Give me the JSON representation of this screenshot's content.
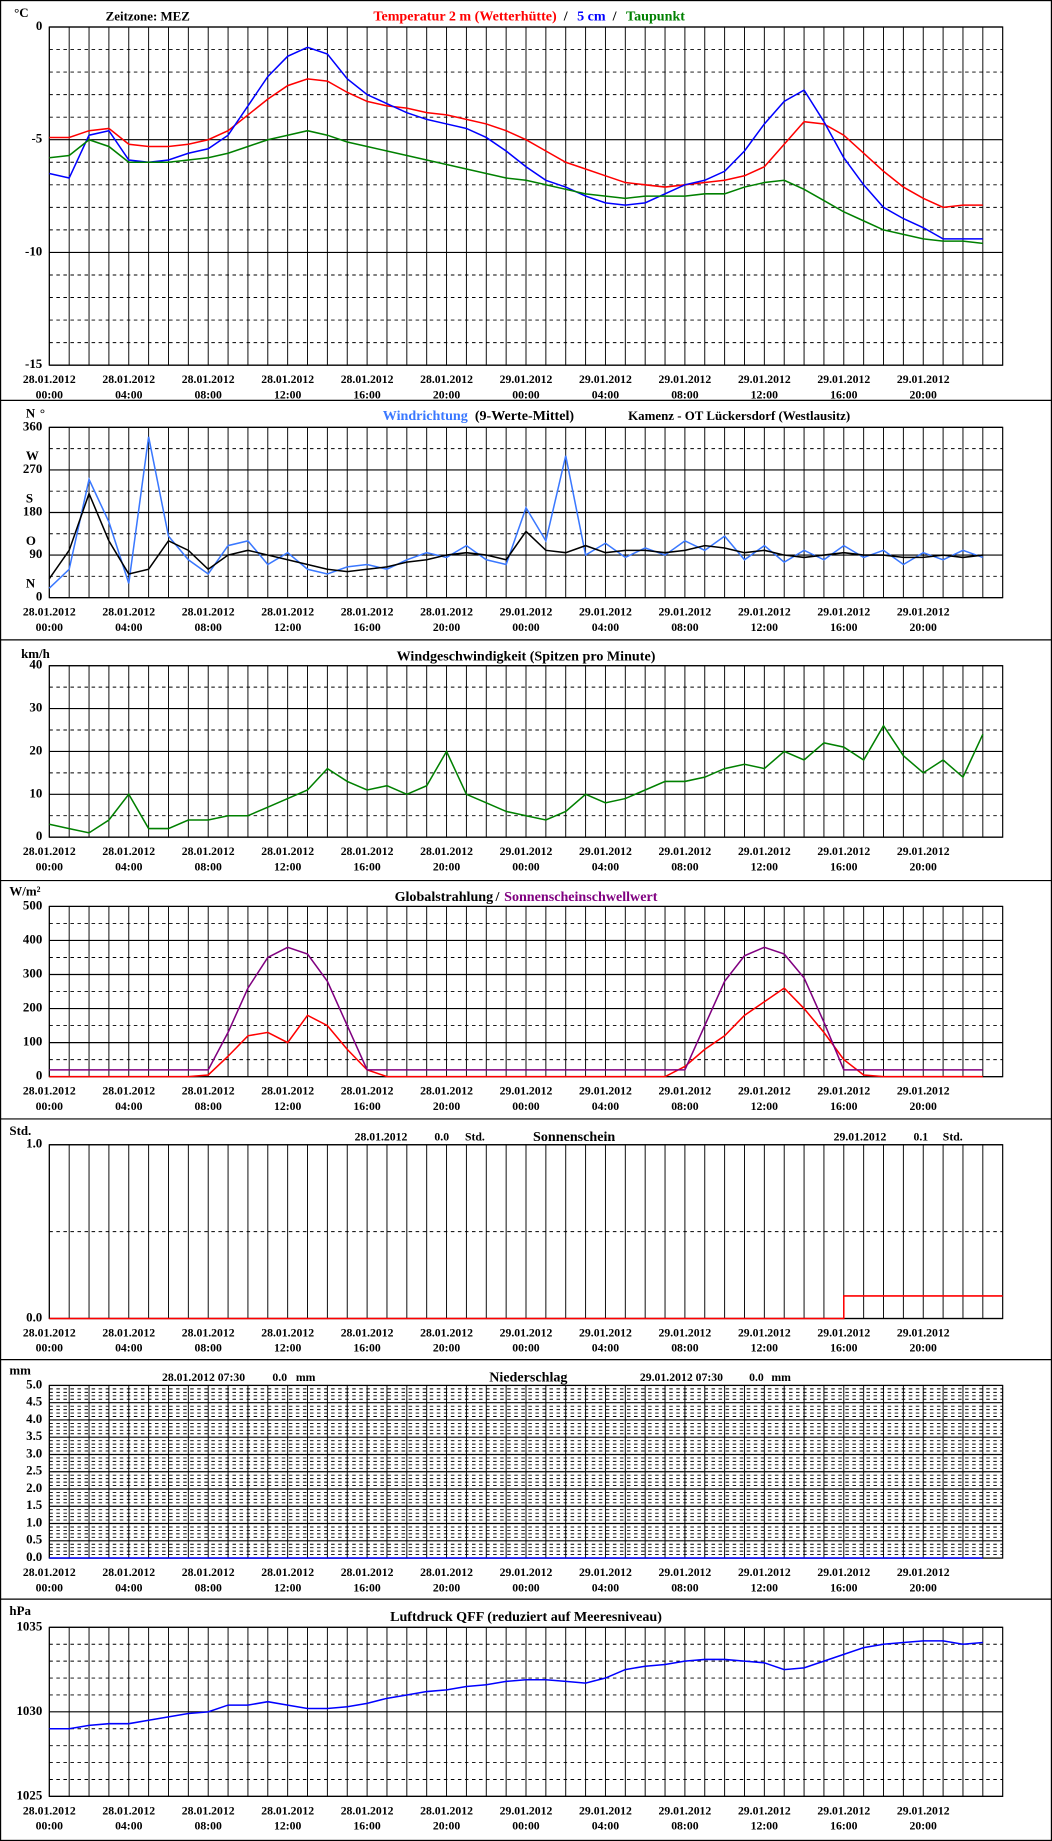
{
  "time_axis": {
    "x": [
      "28.01.2012 00:00",
      "28.01.2012 01:00",
      "28.01.2012 02:00",
      "28.01.2012 03:00",
      "28.01.2012 04:00",
      "28.01.2012 05:00",
      "28.01.2012 06:00",
      "28.01.2012 07:00",
      "28.01.2012 08:00",
      "28.01.2012 09:00",
      "28.01.2012 10:00",
      "28.01.2012 11:00",
      "28.01.2012 12:00",
      "28.01.2012 13:00",
      "28.01.2012 14:00",
      "28.01.2012 15:00",
      "28.01.2012 16:00",
      "28.01.2012 17:00",
      "28.01.2012 18:00",
      "28.01.2012 19:00",
      "28.01.2012 20:00",
      "28.01.2012 21:00",
      "28.01.2012 22:00",
      "28.01.2012 23:00",
      "29.01.2012 00:00",
      "29.01.2012 01:00",
      "29.01.2012 02:00",
      "29.01.2012 03:00",
      "29.01.2012 04:00",
      "29.01.2012 05:00",
      "29.01.2012 06:00",
      "29.01.2012 07:00",
      "29.01.2012 08:00",
      "29.01.2012 09:00",
      "29.01.2012 10:00",
      "29.01.2012 11:00",
      "29.01.2012 12:00",
      "29.01.2012 13:00",
      "29.01.2012 14:00",
      "29.01.2012 15:00",
      "29.01.2012 16:00",
      "29.01.2012 17:00",
      "29.01.2012 18:00",
      "29.01.2012 19:00",
      "29.01.2012 20:00",
      "29.01.2012 21:00",
      "29.01.2012 22:00",
      "29.01.2012 23:00"
    ],
    "xticks": [
      {
        "date": "28.01.2012",
        "time": "00:00"
      },
      {
        "date": "28.01.2012",
        "time": "04:00"
      },
      {
        "date": "28.01.2012",
        "time": "08:00"
      },
      {
        "date": "28.01.2012",
        "time": "12:00"
      },
      {
        "date": "28.01.2012",
        "time": "16:00"
      },
      {
        "date": "28.01.2012",
        "time": "20:00"
      },
      {
        "date": "29.01.2012",
        "time": "00:00"
      },
      {
        "date": "29.01.2012",
        "time": "04:00"
      },
      {
        "date": "29.01.2012",
        "time": "08:00"
      },
      {
        "date": "29.01.2012",
        "time": "12:00"
      },
      {
        "date": "29.01.2012",
        "time": "16:00"
      },
      {
        "date": "29.01.2012",
        "time": "20:00"
      }
    ]
  },
  "chart_data": [
    {
      "type": "line",
      "unit": "°C",
      "zone": "Zeitzone: MEZ",
      "legend_separator": "/",
      "ylim": [
        -15,
        0
      ],
      "yticks": [
        0,
        -5,
        -10,
        -15
      ],
      "minor_grid_step": 1,
      "grid": true,
      "series": [
        {
          "name": "Temperatur 2 m (Wetterhütte)",
          "color": "#ff0000",
          "values": [
            -4.9,
            -4.9,
            -4.6,
            -4.5,
            -5.2,
            -5.3,
            -5.3,
            -5.2,
            -5.0,
            -4.6,
            -3.9,
            -3.2,
            -2.6,
            -2.3,
            -2.4,
            -2.9,
            -3.3,
            -3.5,
            -3.6,
            -3.8,
            -3.9,
            -4.1,
            -4.3,
            -4.6,
            -5.0,
            -5.5,
            -6.0,
            -6.3,
            -6.6,
            -6.9,
            -7.0,
            -7.1,
            -7.0,
            -6.9,
            -6.8,
            -6.6,
            -6.2,
            -5.2,
            -4.2,
            -4.3,
            -4.8,
            -5.6,
            -6.4,
            -7.1,
            -7.6,
            -8.0,
            -7.9,
            -7.9
          ]
        },
        {
          "name": "5 cm",
          "color": "#0000ff",
          "values": [
            -6.5,
            -6.7,
            -4.8,
            -4.6,
            -5.9,
            -6.0,
            -5.9,
            -5.6,
            -5.4,
            -4.8,
            -3.5,
            -2.2,
            -1.3,
            -0.9,
            -1.2,
            -2.3,
            -3.0,
            -3.4,
            -3.8,
            -4.1,
            -4.3,
            -4.5,
            -4.9,
            -5.5,
            -6.2,
            -6.8,
            -7.1,
            -7.5,
            -7.8,
            -7.9,
            -7.8,
            -7.4,
            -7.0,
            -6.8,
            -6.4,
            -5.5,
            -4.3,
            -3.3,
            -2.8,
            -4.2,
            -5.8,
            -7.0,
            -8.0,
            -8.5,
            -8.9,
            -9.4,
            -9.4,
            -9.4
          ]
        },
        {
          "name": "Taupunkt",
          "color": "#008000",
          "values": [
            -5.8,
            -5.7,
            -5.0,
            -5.3,
            -6.0,
            -6.0,
            -6.0,
            -5.9,
            -5.8,
            -5.6,
            -5.3,
            -5.0,
            -4.8,
            -4.6,
            -4.8,
            -5.1,
            -5.3,
            -5.5,
            -5.7,
            -5.9,
            -6.1,
            -6.3,
            -6.5,
            -6.7,
            -6.8,
            -7.0,
            -7.2,
            -7.4,
            -7.5,
            -7.6,
            -7.5,
            -7.5,
            -7.5,
            -7.4,
            -7.4,
            -7.1,
            -6.9,
            -6.8,
            -7.2,
            -7.7,
            -8.2,
            -8.6,
            -9.0,
            -9.2,
            -9.4,
            -9.5,
            -9.5,
            -9.6
          ]
        }
      ]
    },
    {
      "type": "line",
      "unit": "°",
      "station": "Kamenz - OT Lückersdorf (Westlausitz)",
      "ylim": [
        0,
        360
      ],
      "yticks": [
        0,
        90,
        180,
        270,
        360
      ],
      "compass": [
        "N",
        "O",
        "S",
        "W",
        "N"
      ],
      "minor_grid_step": 45,
      "grid": true,
      "series": [
        {
          "name": "Windrichtung",
          "color": "#3a78ff",
          "values": [
            20,
            60,
            250,
            160,
            30,
            340,
            130,
            80,
            50,
            110,
            120,
            70,
            95,
            60,
            50,
            65,
            70,
            60,
            80,
            95,
            85,
            110,
            80,
            70,
            190,
            120,
            300,
            90,
            115,
            85,
            105,
            90,
            120,
            100,
            130,
            80,
            110,
            75,
            100,
            80,
            110,
            85,
            100,
            70,
            95,
            80,
            100,
            85
          ]
        },
        {
          "name": "(9-Werte-Mittel)",
          "color": "#000000",
          "values": [
            40,
            100,
            220,
            120,
            50,
            60,
            120,
            100,
            60,
            90,
            100,
            90,
            80,
            70,
            60,
            55,
            60,
            65,
            75,
            80,
            90,
            95,
            90,
            80,
            140,
            100,
            95,
            110,
            95,
            100,
            100,
            95,
            100,
            110,
            105,
            95,
            100,
            90,
            85,
            90,
            95,
            90,
            90,
            85,
            85,
            90,
            85,
            90
          ]
        }
      ]
    },
    {
      "type": "line",
      "unit": "km/h",
      "title": "Windgeschwindigkeit (Spitzen pro Minute)",
      "ylim": [
        0,
        40
      ],
      "yticks": [
        0,
        10,
        20,
        30,
        40
      ],
      "minor_grid_step": 5,
      "grid": true,
      "series": [
        {
          "name": "Windgeschwindigkeit",
          "color": "#008000",
          "values": [
            3,
            2,
            1,
            4,
            10,
            2,
            2,
            4,
            4,
            5,
            5,
            7,
            9,
            11,
            16,
            13,
            11,
            12,
            10,
            12,
            20,
            10,
            8,
            6,
            5,
            4,
            6,
            10,
            8,
            9,
            11,
            13,
            13,
            14,
            16,
            17,
            16,
            20,
            18,
            22,
            21,
            18,
            26,
            19,
            15,
            18,
            14,
            24
          ]
        }
      ]
    },
    {
      "type": "line",
      "unit": "W/m²",
      "legend_separator": "/",
      "ylim": [
        0,
        500
      ],
      "yticks": [
        0,
        100,
        200,
        300,
        400,
        500
      ],
      "minor_grid_step": 50,
      "grid": true,
      "series": [
        {
          "name": "Globalstrahlung",
          "color": "#ff0000",
          "legend_color": "#000000",
          "values": [
            0,
            0,
            0,
            0,
            0,
            0,
            0,
            0,
            5,
            60,
            120,
            130,
            100,
            180,
            150,
            80,
            20,
            0,
            0,
            0,
            0,
            0,
            0,
            0,
            0,
            0,
            0,
            0,
            0,
            0,
            0,
            0,
            30,
            80,
            120,
            180,
            220,
            260,
            200,
            130,
            50,
            5,
            0,
            0,
            0,
            0,
            0,
            0
          ]
        },
        {
          "name": "Sonnenscheinschwellwert",
          "color": "#800080",
          "values": [
            20,
            20,
            20,
            20,
            20,
            20,
            20,
            20,
            20,
            130,
            260,
            350,
            380,
            360,
            280,
            150,
            20,
            20,
            20,
            20,
            20,
            20,
            20,
            20,
            20,
            20,
            20,
            20,
            20,
            20,
            20,
            20,
            20,
            150,
            280,
            355,
            380,
            360,
            290,
            160,
            20,
            20,
            20,
            20,
            20,
            20,
            20,
            20
          ]
        }
      ]
    },
    {
      "type": "line",
      "unit": "Std.",
      "title": "Sonnenschein",
      "drawstyle": "steps-post",
      "ylim": [
        0,
        1
      ],
      "yticks": [
        {
          "value": 0,
          "label": "0.0"
        },
        {
          "value": 1,
          "label": "1.0"
        }
      ],
      "minor_grid_step": 0.5,
      "grid": true,
      "annotations": [
        {
          "date": "28.01.2012",
          "total": {
            "value": 0,
            "label": "0.0"
          },
          "unit": "Std."
        },
        {
          "date": "29.01.2012",
          "total": {
            "value": 0.1,
            "label": "0.1"
          },
          "unit": "Std."
        }
      ],
      "series": [
        {
          "name": "Sonnenschein",
          "color": "#ff0000",
          "values": [
            0,
            0,
            0,
            0,
            0,
            0,
            0,
            0,
            0,
            0,
            0,
            0,
            0,
            0,
            0,
            0,
            0,
            0,
            0,
            0,
            0,
            0,
            0,
            0,
            0,
            0,
            0,
            0,
            0,
            0,
            0,
            0,
            0,
            0,
            0,
            0,
            0,
            0,
            0,
            0,
            0.13,
            0.13,
            0.13,
            0.13,
            0.13,
            0.13,
            0.13,
            0.13
          ]
        }
      ]
    },
    {
      "type": "line",
      "unit": "mm",
      "title": "Niederschlag",
      "ylim": [
        0,
        5
      ],
      "yticks": [
        {
          "value": 0,
          "label": "0.0"
        },
        {
          "value": 0.5,
          "label": "0.5"
        },
        {
          "value": 1,
          "label": "1.0"
        },
        {
          "value": 1.5,
          "label": "1.5"
        },
        {
          "value": 2,
          "label": "2.0"
        },
        {
          "value": 2.5,
          "label": "2.5"
        },
        {
          "value": 3,
          "label": "3.0"
        },
        {
          "value": 3.5,
          "label": "3.5"
        },
        {
          "value": 4,
          "label": "4.0"
        },
        {
          "value": 4.5,
          "label": "4.5"
        },
        {
          "value": 5,
          "label": "5.0"
        }
      ],
      "minor_grid_step": 0.1,
      "grid": true,
      "annotations": [
        {
          "date": "28.01.2012 07:30",
          "total": {
            "value": 0,
            "label": "0.0"
          },
          "unit": "mm"
        },
        {
          "date": "29.01.2012 07:30",
          "total": {
            "value": 0,
            "label": "0.0"
          },
          "unit": "mm"
        }
      ],
      "series": [
        {
          "name": "Niederschlag",
          "color": "#0000ff",
          "values": [
            0,
            0,
            0,
            0,
            0,
            0,
            0,
            0,
            0,
            0,
            0,
            0,
            0,
            0,
            0,
            0,
            0,
            0,
            0,
            0,
            0,
            0,
            0,
            0,
            0,
            0,
            0,
            0,
            0,
            0,
            0,
            0,
            0,
            0,
            0,
            0,
            0,
            0,
            0,
            0,
            0,
            0,
            0,
            0,
            0,
            0,
            0,
            0
          ]
        }
      ]
    },
    {
      "type": "line",
      "unit": "hPa",
      "title": "Luftdruck QFF (reduziert auf Meeresniveau)",
      "ylim": [
        1025,
        1035
      ],
      "yticks": [
        1025,
        1030,
        1035
      ],
      "minor_grid_step": 1,
      "grid": true,
      "series": [
        {
          "name": "Luftdruck",
          "color": "#0000ff",
          "values": [
            1029.0,
            1029.0,
            1029.2,
            1029.3,
            1029.3,
            1029.5,
            1029.7,
            1029.9,
            1030.0,
            1030.4,
            1030.4,
            1030.6,
            1030.4,
            1030.2,
            1030.2,
            1030.3,
            1030.5,
            1030.8,
            1031.0,
            1031.2,
            1031.3,
            1031.5,
            1031.6,
            1031.8,
            1031.9,
            1031.9,
            1031.8,
            1031.7,
            1032.0,
            1032.5,
            1032.7,
            1032.8,
            1033.0,
            1033.1,
            1033.1,
            1033.0,
            1032.9,
            1032.5,
            1032.6,
            1033.0,
            1033.4,
            1033.8,
            1034.0,
            1034.1,
            1034.2,
            1034.2,
            1034.0,
            1034.1
          ]
        }
      ]
    }
  ]
}
